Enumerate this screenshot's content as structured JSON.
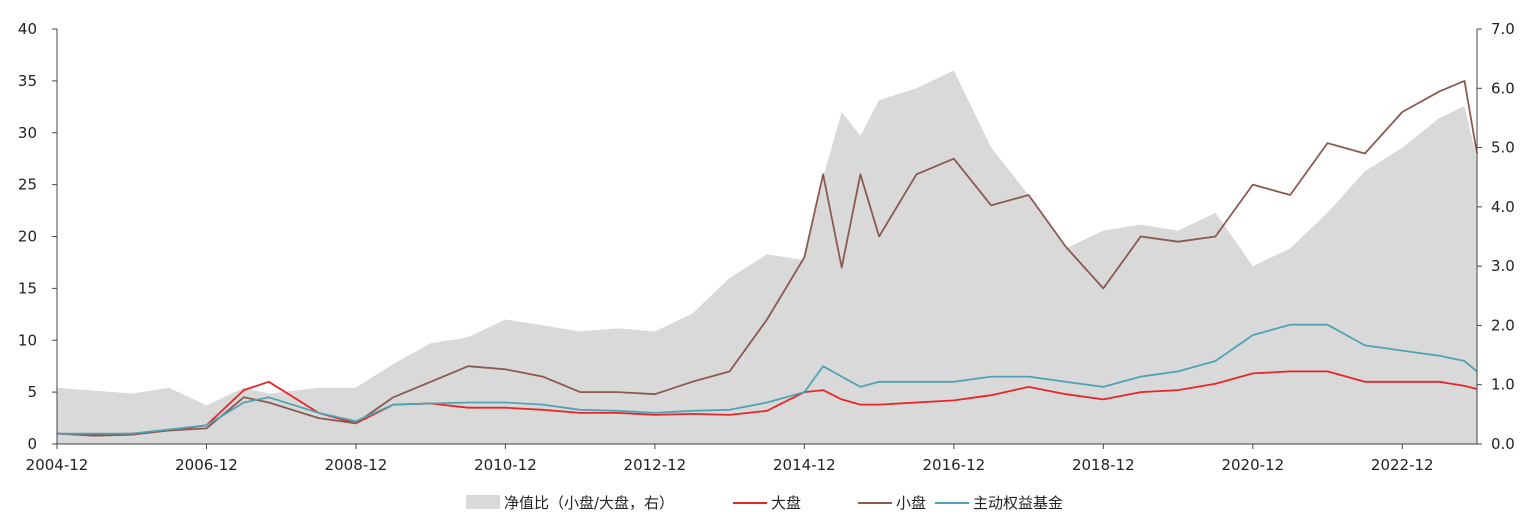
{
  "chart_data": {
    "type": "line",
    "x": [
      "2004-12",
      "2005-06",
      "2005-12",
      "2006-06",
      "2006-12",
      "2007-06",
      "2007-10",
      "2008-06",
      "2008-12",
      "2009-06",
      "2009-12",
      "2010-06",
      "2010-12",
      "2011-06",
      "2011-12",
      "2012-06",
      "2012-12",
      "2013-06",
      "2013-12",
      "2014-06",
      "2014-12",
      "2015-03",
      "2015-06",
      "2015-09",
      "2015-12",
      "2016-06",
      "2016-12",
      "2017-06",
      "2017-12",
      "2018-06",
      "2018-12",
      "2019-06",
      "2019-12",
      "2020-06",
      "2020-12",
      "2021-06",
      "2021-12",
      "2022-06",
      "2022-12",
      "2023-06",
      "2023-10",
      "2023-12"
    ],
    "x_ticks": [
      "2004-12",
      "2006-12",
      "2008-12",
      "2010-12",
      "2012-12",
      "2014-12",
      "2016-12",
      "2018-12",
      "2020-12",
      "2022-12"
    ],
    "y_left": {
      "ticks": [
        0,
        5,
        10,
        15,
        20,
        25,
        30,
        35,
        40
      ],
      "range": [
        0,
        40
      ]
    },
    "y_right": {
      "ticks": [
        "0.0",
        "1.0",
        "2.0",
        "3.0",
        "4.0",
        "5.0",
        "6.0",
        "7.0"
      ],
      "range": [
        0,
        7
      ]
    },
    "series": [
      {
        "name": "净值比（小盘/大盘，右）",
        "kind": "area",
        "axis": "right",
        "color": "#d9d9d9",
        "values": [
          0.95,
          0.9,
          0.85,
          0.95,
          0.65,
          0.95,
          0.85,
          0.95,
          0.95,
          1.35,
          1.7,
          1.8,
          2.1,
          2.0,
          1.9,
          1.95,
          1.9,
          2.2,
          2.8,
          3.2,
          3.1,
          4.5,
          5.6,
          5.2,
          5.8,
          6.0,
          6.3,
          5.0,
          4.2,
          3.3,
          3.6,
          3.7,
          3.6,
          3.9,
          3.0,
          3.3,
          3.9,
          4.6,
          5.0,
          5.5,
          5.7,
          4.8
        ]
      },
      {
        "name": "大盘",
        "kind": "line",
        "axis": "left",
        "color": "#e8262a",
        "values": [
          1.0,
          0.9,
          1.0,
          1.3,
          1.8,
          5.2,
          6.0,
          3.0,
          2.0,
          3.8,
          3.9,
          3.5,
          3.5,
          3.3,
          3.0,
          3.0,
          2.8,
          2.9,
          2.8,
          3.2,
          5.0,
          5.2,
          4.3,
          3.8,
          3.8,
          4.0,
          4.2,
          4.7,
          5.5,
          4.8,
          4.3,
          5.0,
          5.2,
          5.8,
          6.8,
          7.0,
          7.0,
          6.0,
          6.0,
          6.0,
          5.6,
          5.3
        ]
      },
      {
        "name": "小盘",
        "kind": "line",
        "axis": "left",
        "color": "#8b5a50",
        "values": [
          1.0,
          0.8,
          0.9,
          1.3,
          1.5,
          4.5,
          4.0,
          2.5,
          2.0,
          4.5,
          6.0,
          7.5,
          7.2,
          6.5,
          5.0,
          5.0,
          4.8,
          6.0,
          7.0,
          12.0,
          18.0,
          26.0,
          17.0,
          26.0,
          20.0,
          26.0,
          27.5,
          23.0,
          24.0,
          19.0,
          15.0,
          20.0,
          19.5,
          20.0,
          25.0,
          24.0,
          29.0,
          28.0,
          32.0,
          34.0,
          35.0,
          28.0
        ]
      },
      {
        "name": "主动权益基金",
        "kind": "line",
        "axis": "left",
        "color": "#4fa3b5",
        "values": [
          1.0,
          1.0,
          1.0,
          1.4,
          1.8,
          4.0,
          4.5,
          3.0,
          2.2,
          3.8,
          3.9,
          4.0,
          4.0,
          3.8,
          3.3,
          3.2,
          3.0,
          3.2,
          3.3,
          4.0,
          5.0,
          7.5,
          6.5,
          5.5,
          6.0,
          6.0,
          6.0,
          6.5,
          6.5,
          6.0,
          5.5,
          6.5,
          7.0,
          8.0,
          10.5,
          11.5,
          11.5,
          9.5,
          9.0,
          8.5,
          8.0,
          7.0
        ]
      }
    ],
    "legend_position": "bottom",
    "grid": false
  }
}
